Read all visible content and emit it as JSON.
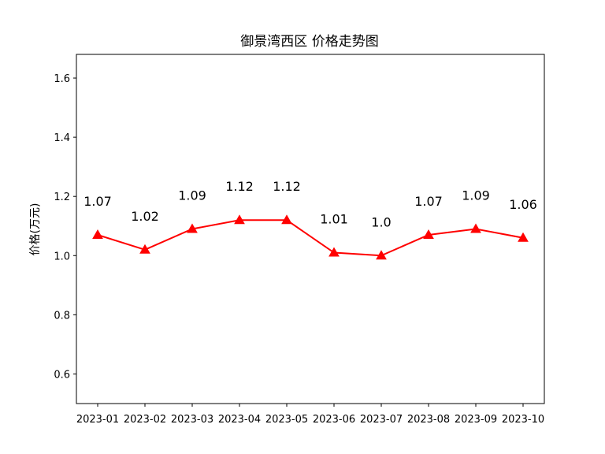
{
  "chart_data": {
    "type": "line",
    "title": "御景湾西区 价格走势图",
    "xlabel": "",
    "ylabel": "价格(万元)",
    "categories": [
      "2023-01",
      "2023-02",
      "2023-03",
      "2023-04",
      "2023-05",
      "2023-06",
      "2023-07",
      "2023-08",
      "2023-09",
      "2023-10"
    ],
    "series": [
      {
        "values": [
          1.07,
          1.02,
          1.09,
          1.12,
          1.12,
          1.01,
          1.0,
          1.07,
          1.09,
          1.06
        ],
        "data_labels": [
          "1.07",
          "1.02",
          "1.09",
          "1.12",
          "1.12",
          "1.01",
          "1.0",
          "1.07",
          "1.09",
          "1.06"
        ],
        "color": "#ff0000",
        "marker": "triangle-up"
      }
    ],
    "ylim": [
      0.5,
      1.68
    ],
    "yticks": [
      0.6,
      0.8,
      1.0,
      1.2,
      1.4,
      1.6
    ],
    "ytick_labels": [
      "0.6",
      "0.8",
      "1.0",
      "1.2",
      "1.4",
      "1.6"
    ],
    "grid": false,
    "legend": "none"
  }
}
